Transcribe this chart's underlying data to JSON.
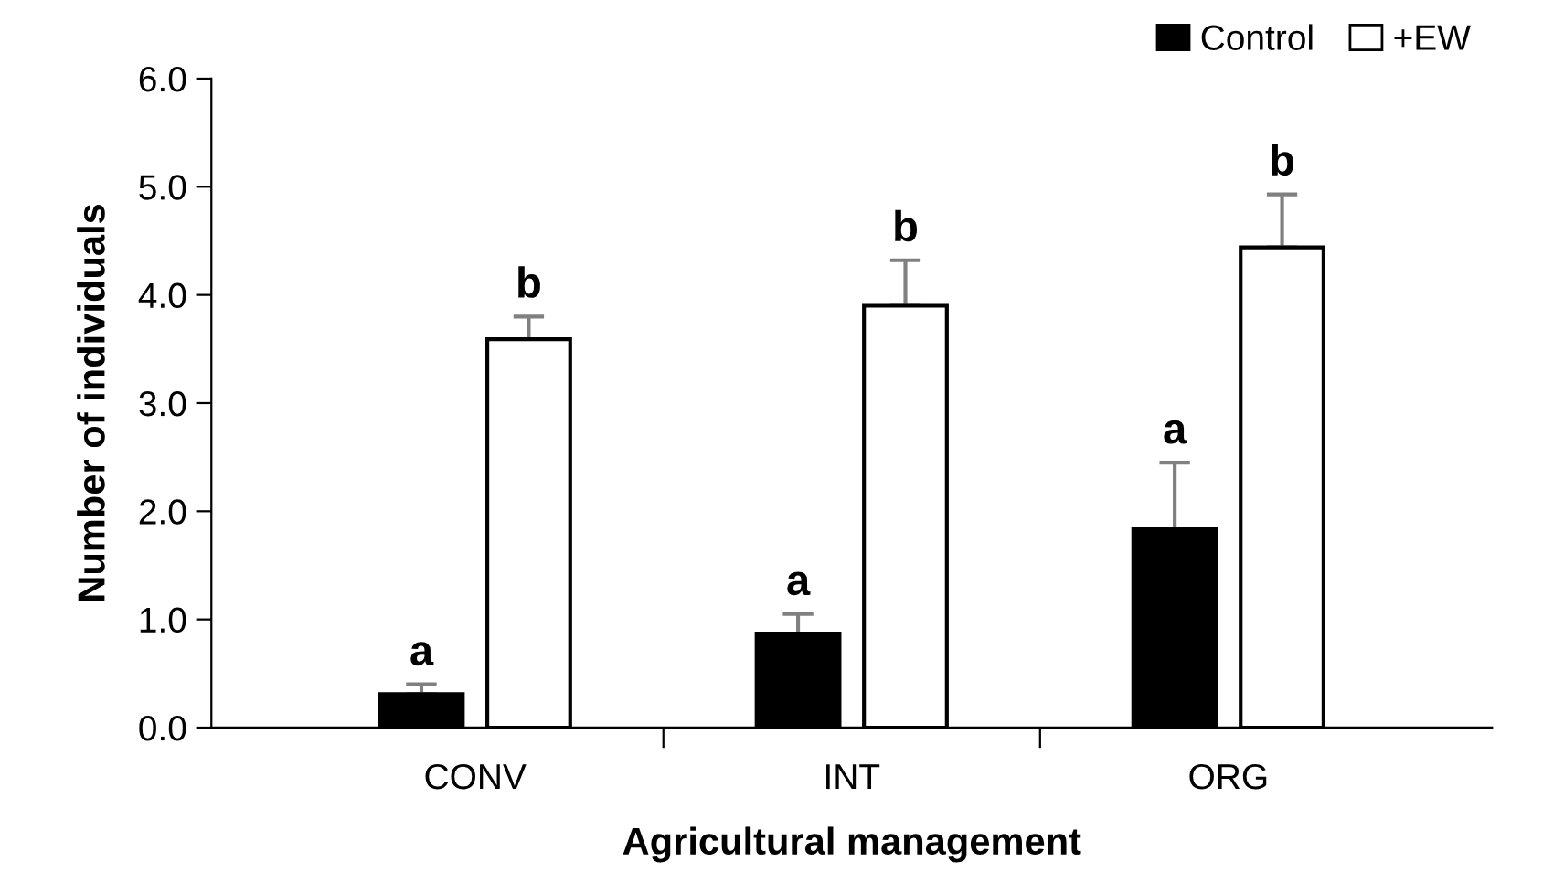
{
  "chart_data": {
    "type": "bar",
    "xlabel": "Agricultural management",
    "ylabel": "Number of individuals",
    "categories": [
      "CONV",
      "INT",
      "ORG"
    ],
    "series": [
      {
        "name": "Control",
        "color": "#000000",
        "values": [
          0.31,
          0.87,
          1.84
        ],
        "errors": [
          [
            0.31,
            0.4
          ],
          [
            0.87,
            1.05
          ],
          [
            1.84,
            2.45
          ]
        ]
      },
      {
        "name": "+EW",
        "color": "#ffffff",
        "values": [
          3.59,
          3.9,
          4.44
        ],
        "errors": [
          [
            3.59,
            3.8
          ],
          [
            3.9,
            4.32
          ],
          [
            4.44,
            4.93
          ]
        ]
      }
    ],
    "annotations": [
      "a",
      "b",
      "a",
      "b",
      "a",
      "b"
    ],
    "ylim": [
      0,
      6
    ],
    "yticks": [
      {
        "value": 0,
        "label": "0.0"
      },
      {
        "value": 1,
        "label": "1.0"
      },
      {
        "value": 2,
        "label": "2.0"
      },
      {
        "value": 3,
        "label": "3.0"
      },
      {
        "value": 4,
        "label": "4.0"
      },
      {
        "value": 5,
        "label": "5.0"
      },
      {
        "value": 6,
        "label": "6.0"
      }
    ],
    "grid": false,
    "legend": "top right"
  }
}
